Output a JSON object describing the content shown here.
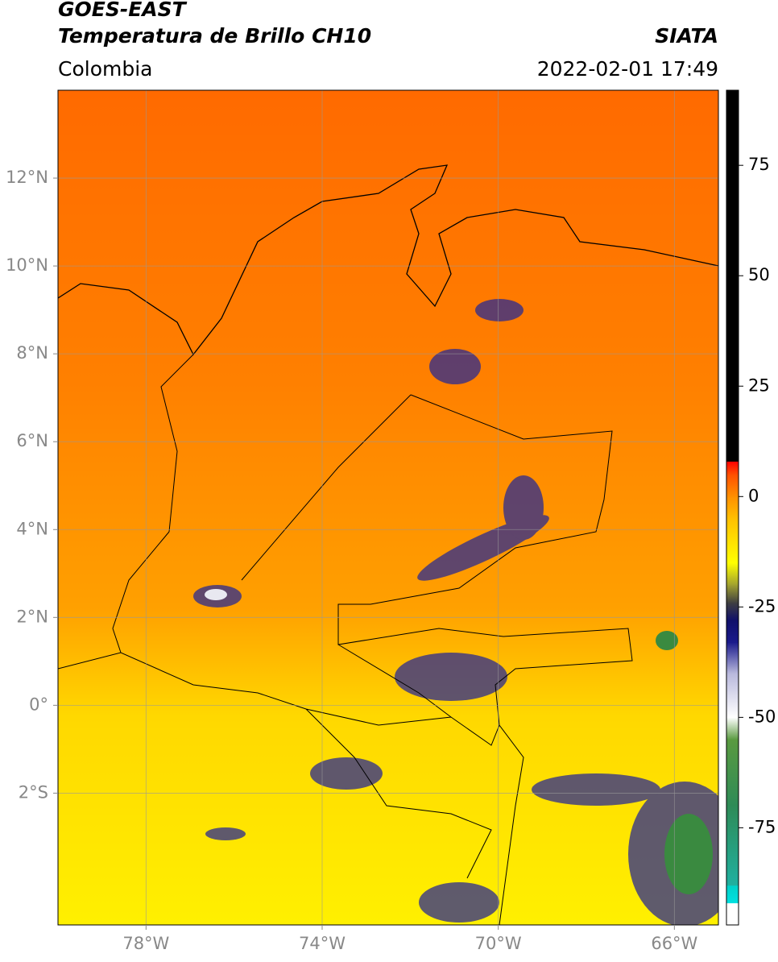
{
  "header": {
    "title": "GOES-EAST",
    "subtitle": "Temperatura de Brillo CH10",
    "source": "SIATA",
    "region": "Colombia",
    "datetime": "2022-02-01 17:49"
  },
  "map": {
    "xlim": [
      -80,
      -65
    ],
    "ylim": [
      -5,
      14
    ],
    "xticks": [
      {
        "value": -78,
        "label": "78°W"
      },
      {
        "value": -74,
        "label": "74°W"
      },
      {
        "value": -70,
        "label": "70°W"
      },
      {
        "value": -66,
        "label": "66°W"
      }
    ],
    "yticks": [
      {
        "value": 12,
        "label": "12°N"
      },
      {
        "value": 10,
        "label": "10°N"
      },
      {
        "value": 8,
        "label": "8°N"
      },
      {
        "value": 6,
        "label": "6°N"
      },
      {
        "value": 4,
        "label": "4°N"
      },
      {
        "value": 2,
        "label": "2°N"
      },
      {
        "value": 0,
        "label": "0°"
      },
      {
        "value": -2,
        "label": "2°S"
      }
    ],
    "grid": true
  },
  "colorbar": {
    "lim": [
      -97,
      92
    ],
    "ticks": [
      75,
      50,
      25,
      0,
      -25,
      -50,
      -75
    ],
    "stops": [
      {
        "value": -97,
        "color": "#ffffff"
      },
      {
        "value": -92,
        "color": "#ffffff"
      },
      {
        "value": -92,
        "color": "#00e0e0"
      },
      {
        "value": -88,
        "color": "#00d0c8"
      },
      {
        "value": -88,
        "color": "#20b0a0"
      },
      {
        "value": -70,
        "color": "#2e8b57"
      },
      {
        "value": -55,
        "color": "#5a9a40"
      },
      {
        "value": -50,
        "color": "#ffffff"
      },
      {
        "value": -40,
        "color": "#b8b8dc"
      },
      {
        "value": -33,
        "color": "#1a1a8c"
      },
      {
        "value": -28,
        "color": "#10106a"
      },
      {
        "value": -24,
        "color": "#404040"
      },
      {
        "value": -20,
        "color": "#a0a030"
      },
      {
        "value": -15,
        "color": "#ffff00"
      },
      {
        "value": -5,
        "color": "#ffc000"
      },
      {
        "value": 0,
        "color": "#ff9000"
      },
      {
        "value": 5,
        "color": "#ff5000"
      },
      {
        "value": 8,
        "color": "#ff0000"
      },
      {
        "value": 8,
        "color": "#000000"
      },
      {
        "value": 92,
        "color": "#000000"
      }
    ]
  }
}
